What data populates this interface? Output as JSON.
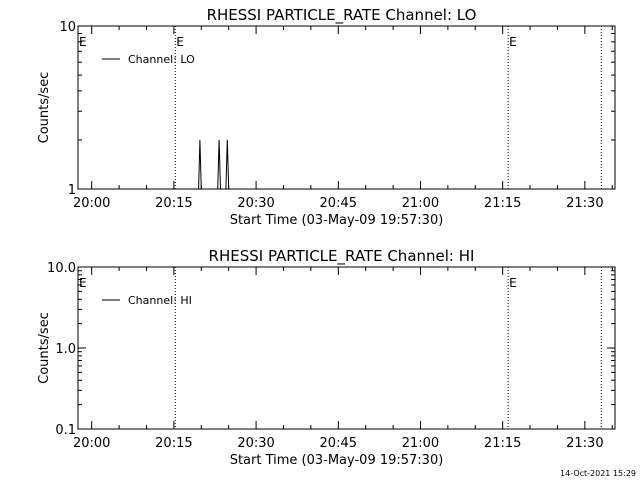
{
  "footer_timestamp": "14-Oct-2021 15:29",
  "chart_data": [
    {
      "type": "line",
      "title": "RHESSI PARTICLE_RATE Channel: LO",
      "xlabel": "Start Time (03-May-09 19:57:30)",
      "ylabel": "Counts/sec",
      "yscale": "log",
      "ylim": [
        1,
        10
      ],
      "y_ticks": [
        "1",
        "10"
      ],
      "x_ticks": [
        "20:00",
        "20:15",
        "20:30",
        "20:45",
        "21:00",
        "21:15",
        "21:30"
      ],
      "xlim": [
        "19:57:30",
        "21:35:30"
      ],
      "legend": {
        "label": "Channel: LO",
        "placement": "top-left"
      },
      "event_lines": [
        {
          "time": "20:15:15",
          "label": "E"
        },
        {
          "time": "21:16:00",
          "label": "E"
        },
        {
          "time": "21:33:00",
          "label": ""
        }
      ],
      "event_start_markers": [
        {
          "time": "19:57:30",
          "label": "E"
        }
      ],
      "series": [
        {
          "x": [
            "19:57:30",
            "20:19:30",
            "20:19:45",
            "20:20:00",
            "20:20:15",
            "20:23:00",
            "20:23:15",
            "20:23:30",
            "20:24:30",
            "20:24:45",
            "20:25:00",
            "20:25:15"
          ],
          "values": [
            1,
            1,
            2,
            1,
            1,
            1,
            2,
            1,
            1,
            2,
            1,
            1
          ]
        }
      ]
    },
    {
      "type": "line",
      "title": "RHESSI PARTICLE_RATE Channel: HI",
      "xlabel": "Start Time (03-May-09 19:57:30)",
      "ylabel": "Counts/sec",
      "yscale": "log",
      "ylim": [
        0.1,
        10
      ],
      "y_ticks": [
        "0.1",
        "1.0",
        "10.0"
      ],
      "x_ticks": [
        "20:00",
        "20:15",
        "20:30",
        "20:45",
        "21:00",
        "21:15",
        "21:30"
      ],
      "xlim": [
        "19:57:30",
        "21:35:30"
      ],
      "legend": {
        "label": "Channel: HI",
        "placement": "top-left"
      },
      "event_lines": [
        {
          "time": "20:15:15",
          "label": ""
        },
        {
          "time": "21:16:00",
          "label": "E"
        },
        {
          "time": "21:33:00",
          "label": ""
        }
      ],
      "event_start_markers": [
        {
          "time": "19:57:30",
          "label": "E"
        }
      ],
      "series": [
        {
          "x": [],
          "values": []
        }
      ]
    }
  ]
}
